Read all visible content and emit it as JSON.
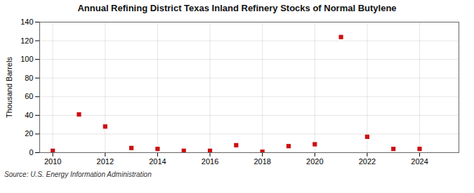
{
  "chart_data": {
    "type": "scatter",
    "title": "Annual Refining District Texas Inland Refinery Stocks of Normal Butylene",
    "ylabel": "Thousand Barrels",
    "source": "Source: U.S. Energy Information Administration",
    "x": [
      2010,
      2011,
      2012,
      2013,
      2014,
      2015,
      2016,
      2017,
      2018,
      2019,
      2020,
      2021,
      2022,
      2023,
      2024
    ],
    "values": [
      2,
      41,
      28,
      5,
      4,
      2,
      2,
      8,
      1,
      7,
      9,
      124,
      17,
      4,
      4
    ],
    "color": "#cc1111",
    "marker": "square",
    "xlim": [
      2009.5,
      2025.5
    ],
    "ylim": [
      0,
      140
    ],
    "xticks": [
      2010,
      2012,
      2014,
      2016,
      2018,
      2020,
      2022,
      2024
    ],
    "yticks": [
      0,
      20,
      40,
      60,
      80,
      100,
      120,
      140
    ],
    "grid": true
  }
}
